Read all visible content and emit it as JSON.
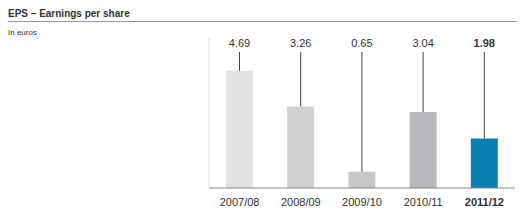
{
  "chart_data": {
    "type": "bar",
    "title": "EPS – Earnings per share",
    "subtitle": "In euros",
    "categories": [
      "2007/08",
      "2008/09",
      "2009/10",
      "2010/11",
      "2011/12"
    ],
    "values": [
      4.69,
      3.26,
      0.65,
      3.04,
      1.98
    ],
    "colors": [
      "#e2e2e2",
      "#d0d0d0",
      "#c8c8c8",
      "#b9b9bd",
      "#0a7fb0"
    ],
    "ylim": [
      0,
      6
    ],
    "data_labels": true,
    "tick_labels": "x"
  }
}
